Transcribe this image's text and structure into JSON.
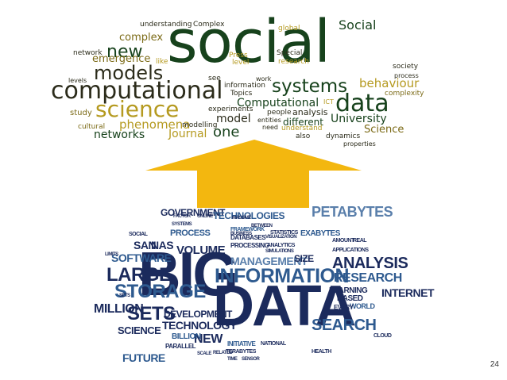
{
  "slide": {
    "page_number": "24",
    "colors": {
      "arrow": "#f3b70f",
      "top_dark_green": "#17421c",
      "top_olive": "#7b6a16",
      "top_gold": "#b59a20",
      "top_dark": "#2b2b1a",
      "bottom_navy": "#1b2a5c",
      "bottom_blue": "#2e5a8f",
      "bottom_steel": "#5a7fab"
    }
  },
  "top_cloud": {
    "words": [
      "social",
      "computational",
      "science",
      "data",
      "systems",
      "models",
      "new",
      "complex",
      "emergence",
      "behaviour",
      "Social",
      "networks",
      "phenomena",
      "Journal",
      "one",
      "model",
      "University",
      "Science",
      "Computational",
      "understanding",
      "Complex",
      "global",
      "network",
      "like",
      "Press",
      "level",
      "Special",
      "research",
      "society",
      "process",
      "complexity",
      "levels",
      "see",
      "work",
      "information",
      "Topics",
      "experiments",
      "people",
      "analysis",
      "ICT",
      "different",
      "study",
      "cultural",
      "modelling",
      "entities",
      "need",
      "understand",
      "also",
      "dynamics",
      "properties"
    ]
  },
  "bottom_cloud": {
    "words": [
      "BIG",
      "DATA",
      "INFORMATION",
      "STORAGE",
      "LARGE",
      "SETS",
      "MILLION",
      "TECHNOLOGY",
      "DEVELOPMENT",
      "MANAGEMENT",
      "ANALYSIS",
      "RESEARCH",
      "SEARCH",
      "PETABYTES",
      "VOLUME",
      "SOFTWARE",
      "PROCESS",
      "GOVERNMENT",
      "INTERNET",
      "TECHNOLOGIES",
      "FUTURE",
      "SCIENCE",
      "NEW",
      "BILLION",
      "SIZE",
      "EXABYTES",
      "PARALLEL",
      "SAN",
      "NAS",
      "LEARNING",
      "BASED",
      "WORLD",
      "TERABYTES",
      "DATABASES",
      "PROCESSING",
      "INITIATIVE",
      "NATIONAL",
      "STATISTICS",
      "EVERY",
      "APPLICATIONS",
      "SOCIAL",
      "CLOUD",
      "HEALTH",
      "LIMITS",
      "MASSIVE",
      "BETWEEN",
      "FRAMEWORK",
      "BUSINESS",
      "VISUALIZATION",
      "ANALYTICS",
      "SIMULATIONS",
      "RELATED",
      "SENSOR",
      "SCALE",
      "TIME",
      "AMOUNT",
      "REAL",
      "FACTOR",
      "ONLINE",
      "SYSTEMS",
      "SETS"
    ]
  }
}
